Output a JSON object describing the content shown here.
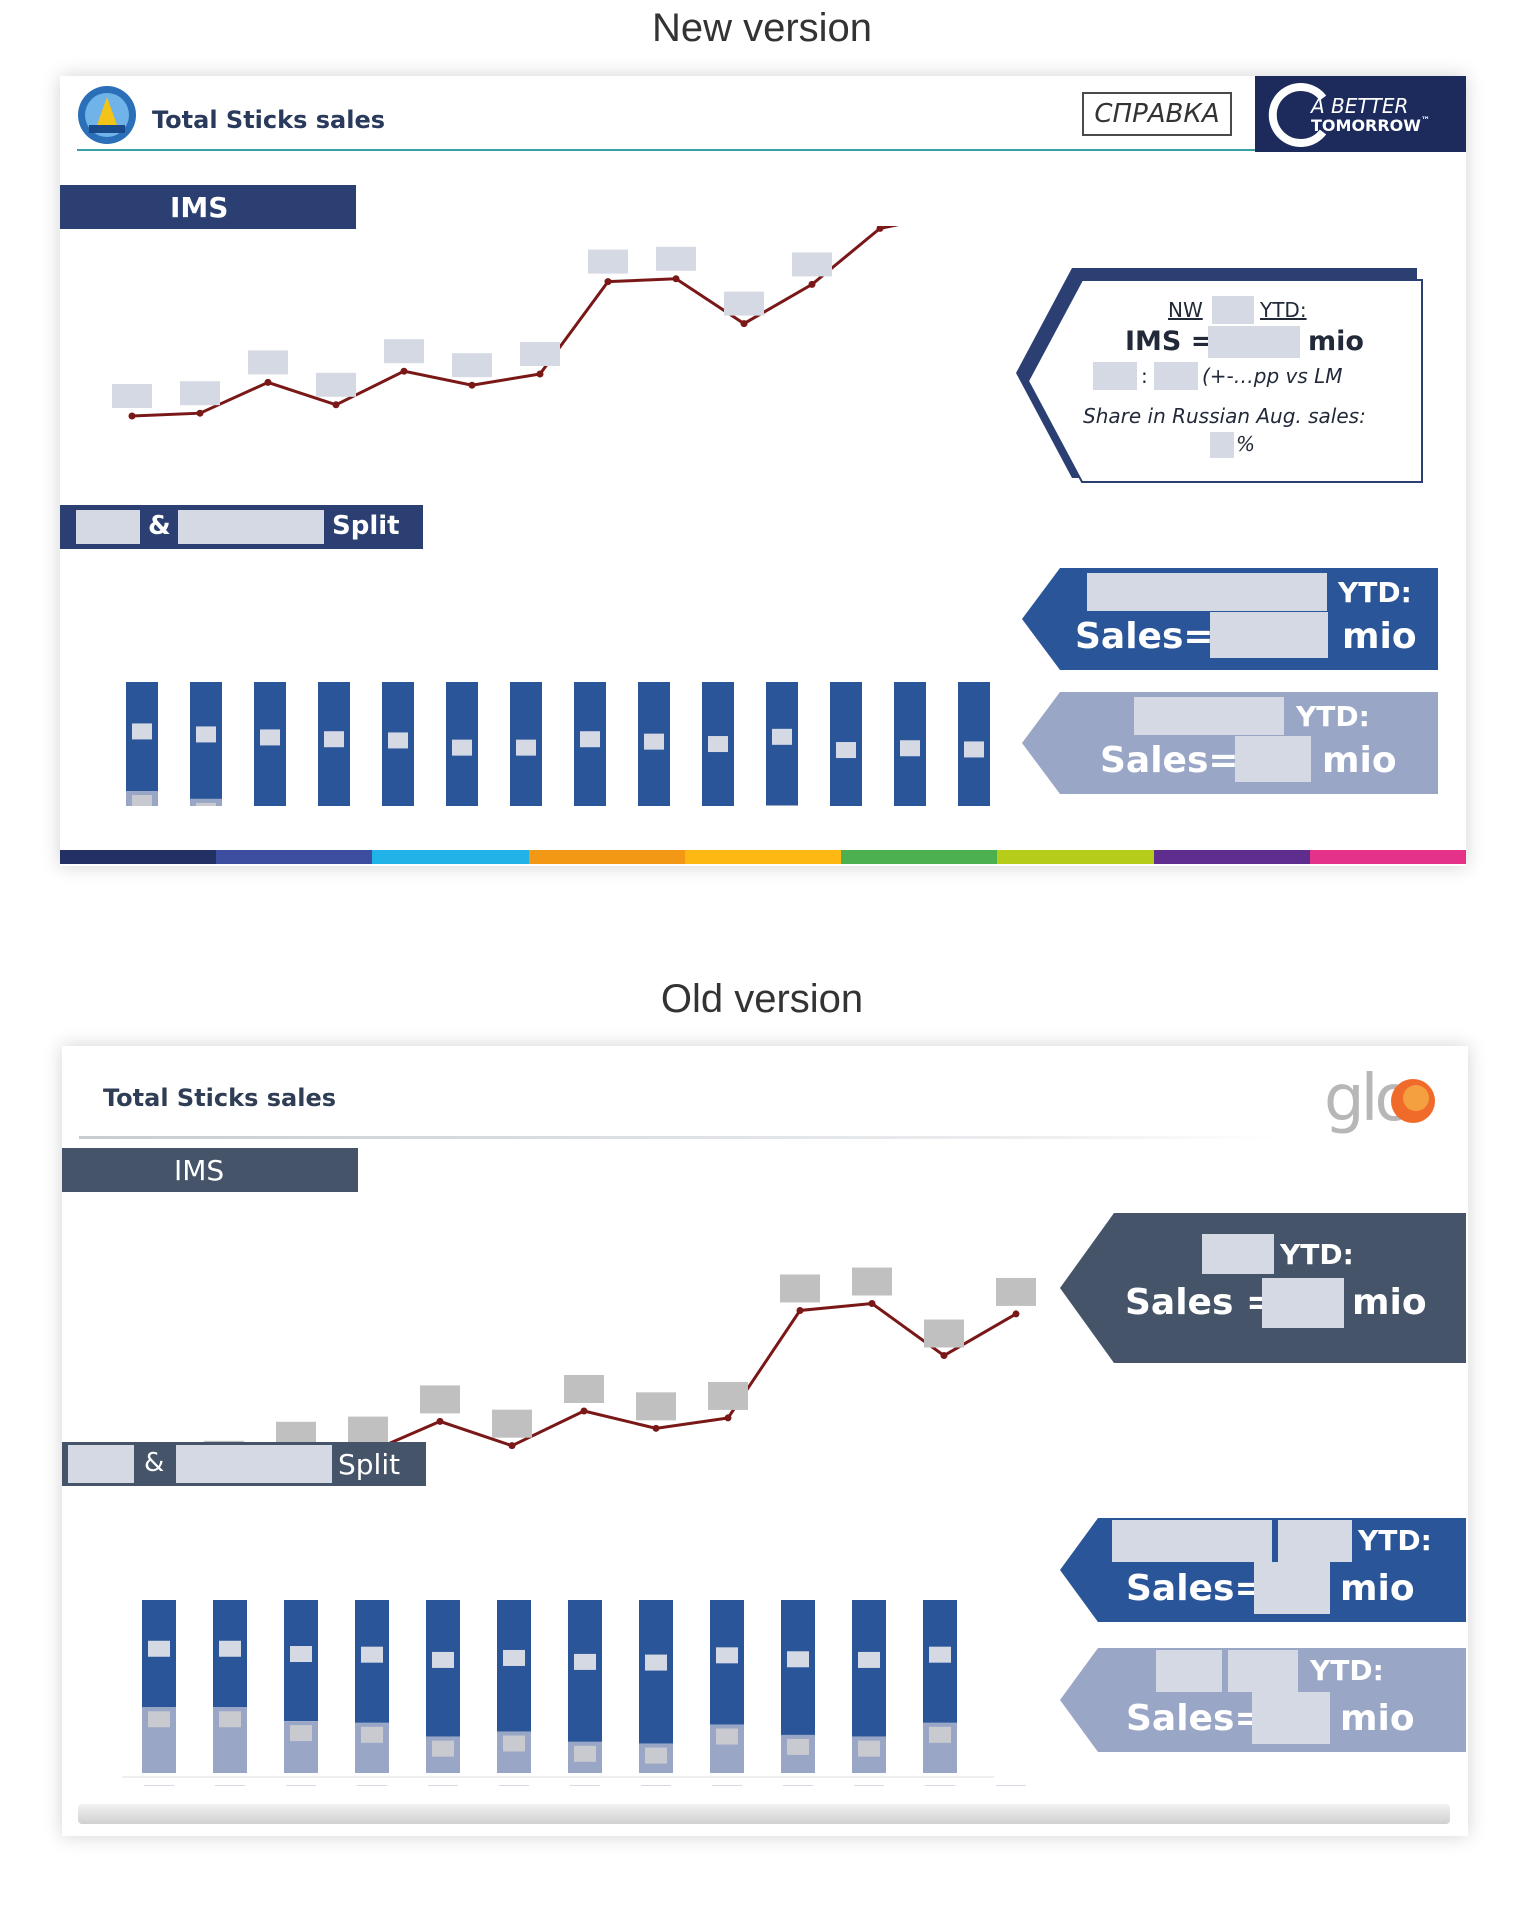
{
  "headings": {
    "new": "New version",
    "old": "Old version"
  },
  "new_slide": {
    "title": "Total Sticks sales",
    "reference_button": "СПРАВКА",
    "logo_text_line1": "A BETTER",
    "logo_text_line2": "TOMORROW",
    "logo_tm": "™",
    "ims_header": "IMS",
    "split_header": {
      "amp": "&",
      "split": "Split"
    },
    "ims_callout": {
      "nw": "NW",
      "ytd": "YTD:",
      "ims_label": "IMS =",
      "mio": "mio",
      "colon": ":",
      "change": "(+-…pp vs LM",
      "share": "Share in Russian Aug. sales:",
      "pct": "%"
    },
    "sales_callout_dark": {
      "ytd": "YTD:",
      "sales": "Sales=",
      "mio": "mio"
    },
    "sales_callout_light": {
      "ytd": "YTD:",
      "sales": "Sales=",
      "mio": "mio"
    },
    "colors": {
      "navy": "#2b3f73",
      "blue": "#2a5699",
      "light": "#9aa6c6",
      "line": "#7a1717",
      "band": [
        "#233066",
        "#3d4da0",
        "#21b3e8",
        "#f39814",
        "#fdb813",
        "#4caf50",
        "#b5cc18",
        "#5e2d8e",
        "#e53289"
      ]
    }
  },
  "old_slide": {
    "title": "Total Sticks sales",
    "logo_text": "glo",
    "ims_header": "IMS",
    "split_header": {
      "amp": "&",
      "split": "Split"
    },
    "sales_callout_dark": {
      "ytd": "YTD:",
      "sales": "Sales =",
      "mio": "mio"
    },
    "sales_callout_blue": {
      "ytd": "YTD:",
      "sales": "Sales=",
      "mio": "mio"
    },
    "sales_callout_light": {
      "ytd": "YTD:",
      "sales": "Sales=",
      "mio": "mio"
    },
    "colors": {
      "slate": "#455468",
      "blue": "#2a5699",
      "light": "#9aa6c6"
    }
  },
  "chart_data": [
    {
      "type": "line",
      "series": [
        {
          "values": [
            10,
            10.2,
            12.4,
            10.8,
            13.2,
            12.2,
            13.0,
            19.6,
            19.8,
            16.6,
            19.4,
            23.4,
            24.4
          ]
        }
      ],
      "ylim": [
        0,
        30
      ]
    },
    {
      "type": "bar",
      "series": [
        {
          "values": [
            0.69,
            0.74,
            0.79,
            0.82,
            0.84,
            0.96,
            0.96,
            0.82,
            0.86,
            0.9,
            0.78,
            1.0,
            0.97,
            0.99
          ]
        },
        {
          "values": [
            0.31,
            0.26,
            0.21,
            0.18,
            0.16,
            0.04,
            0.04,
            0.18,
            0.14,
            0.1,
            0.22,
            0.0,
            0.03,
            0.01
          ]
        }
      ]
    },
    {
      "type": "line",
      "series": [
        {
          "values": [
            10,
            11.2,
            12.3,
            12.6,
            14.4,
            13.0,
            15.0,
            14.0,
            14.6,
            20.8,
            21.2,
            18.2,
            20.6
          ]
        }
      ],
      "ylim": [
        0,
        30
      ]
    },
    {
      "type": "bar",
      "series": [
        {
          "values": [
            0.62,
            0.62,
            0.7,
            0.71,
            0.79,
            0.76,
            0.82,
            0.83,
            0.72,
            0.78,
            0.79,
            0.71
          ]
        },
        {
          "values": [
            0.38,
            0.38,
            0.3,
            0.29,
            0.21,
            0.24,
            0.18,
            0.17,
            0.28,
            0.22,
            0.21,
            0.29
          ]
        }
      ]
    }
  ]
}
